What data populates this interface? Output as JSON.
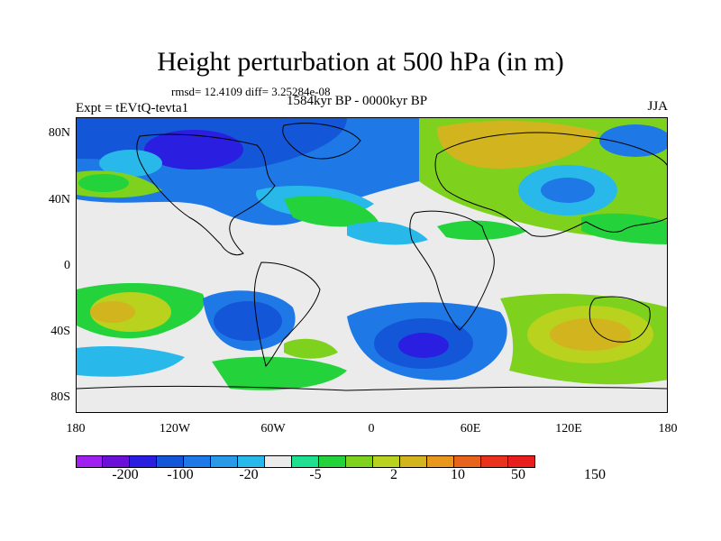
{
  "title": "Height perturbation at 500 hPa (in m)",
  "stats": "rmsd= 12.4109 diff= 3.25284e-08",
  "left_subtitle": "Expt = tEVtQ-tevta1",
  "center_subtitle": "1584kyr BP - 0000kyr BP",
  "right_subtitle": "JJA",
  "y_ticks": [
    "80N",
    "40N",
    "0",
    "40S",
    "80S"
  ],
  "x_ticks": [
    "180",
    "120W",
    "60W",
    "0",
    "60E",
    "120E",
    "180"
  ],
  "colorbar": {
    "colors": [
      "#a020f0",
      "#6a10d8",
      "#2a1ee0",
      "#1456d8",
      "#1e78e6",
      "#2a9ae8",
      "#28b8ea",
      "#ebebeb",
      "#1ee090",
      "#24d23c",
      "#7ed21e",
      "#b8d21e",
      "#d2b41e",
      "#e8961e",
      "#e8641e",
      "#e8321e",
      "#e81e1e"
    ],
    "labels": [
      "-200",
      "-100",
      "-20",
      "-5",
      "2",
      "10",
      "50",
      "150"
    ]
  },
  "palette": {
    "violet": "#6a10d8",
    "deep_blue": "#2a1ee0",
    "blue": "#1456d8",
    "mid_blue": "#1e78e6",
    "light_blue": "#28b8ea",
    "neutral": "#ebebeb",
    "teal": "#1ee090",
    "green": "#24d23c",
    "lime": "#7ed21e",
    "yellow_green": "#b8d21e",
    "gold": "#d2b41e"
  }
}
